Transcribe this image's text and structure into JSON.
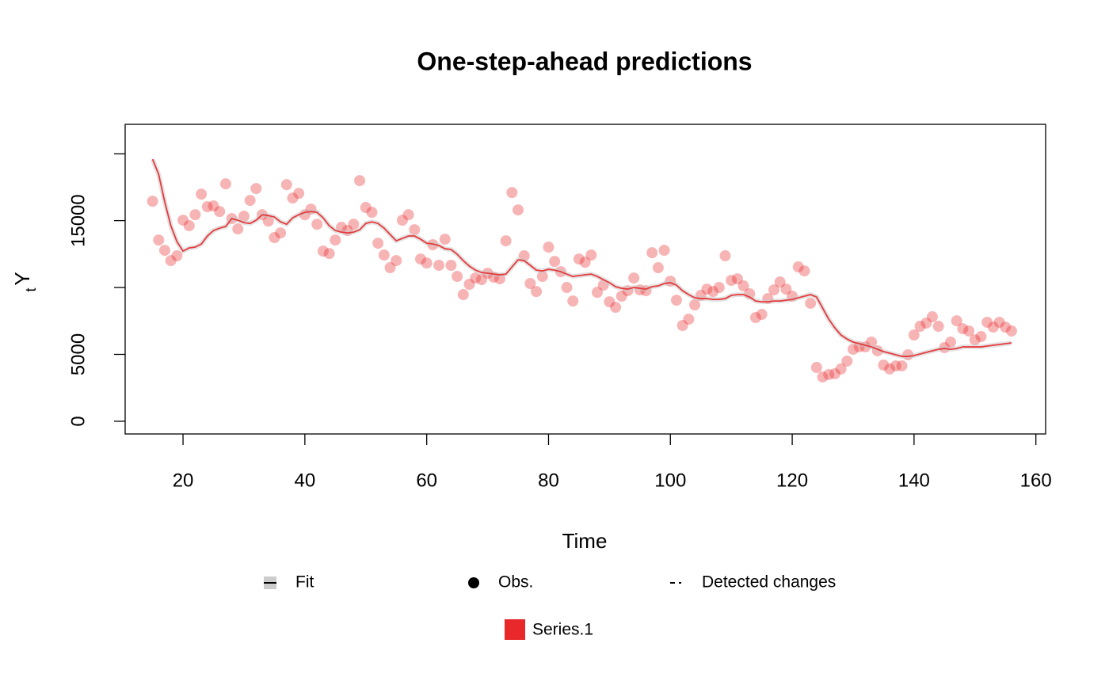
{
  "chart_data": {
    "type": "scatter-line",
    "title": "One-step-ahead predictions",
    "x_label": "Time",
    "y_label": {
      "main": "Y",
      "sub": "t"
    },
    "x": [
      15,
      16,
      17,
      18,
      19,
      20,
      21,
      22,
      23,
      24,
      25,
      26,
      27,
      28,
      29,
      30,
      31,
      32,
      33,
      34,
      35,
      36,
      37,
      38,
      39,
      40,
      41,
      42,
      43,
      44,
      45,
      46,
      47,
      48,
      49,
      50,
      51,
      52,
      53,
      54,
      55,
      56,
      57,
      58,
      59,
      60,
      61,
      62,
      63,
      64,
      65,
      66,
      67,
      68,
      69,
      70,
      71,
      72,
      73,
      74,
      75,
      76,
      77,
      78,
      79,
      80,
      81,
      82,
      83,
      84,
      85,
      86,
      87,
      88,
      89,
      90,
      91,
      92,
      93,
      94,
      95,
      96,
      97,
      98,
      99,
      100,
      101,
      102,
      103,
      104,
      105,
      106,
      107,
      108,
      109,
      110,
      111,
      112,
      113,
      114,
      115,
      116,
      117,
      118,
      119,
      120,
      121,
      122,
      123,
      124,
      125,
      126,
      127,
      128,
      129,
      130,
      131,
      132,
      133,
      134,
      135,
      136,
      137,
      138,
      139,
      140,
      141,
      142,
      143,
      144,
      145,
      146,
      147,
      148,
      149,
      150,
      151,
      152,
      153,
      154,
      155,
      156
    ],
    "series": [
      {
        "name": "Obs.",
        "color": "rgba(232,40,43,0.35)",
        "style": "points",
        "values": [
          16450,
          13550,
          12780,
          12010,
          12370,
          15030,
          14620,
          15440,
          16980,
          16040,
          16100,
          15680,
          17750,
          15150,
          14380,
          15330,
          16510,
          17400,
          15440,
          14970,
          13730,
          14080,
          17690,
          16690,
          17040,
          15440,
          15860,
          14730,
          12720,
          12540,
          13550,
          14500,
          14260,
          14730,
          17990,
          15980,
          15620,
          13310,
          12430,
          11480,
          12010,
          15030,
          15440,
          14320,
          12130,
          11830,
          13200,
          11660,
          13610,
          11660,
          10830,
          9470,
          10240,
          10710,
          10590,
          11070,
          10770,
          10650,
          13490,
          17100,
          15800,
          12370,
          10300,
          9700,
          10830,
          13020,
          11950,
          11180,
          10000,
          8990,
          12130,
          11890,
          12430,
          9640,
          10180,
          8930,
          8520,
          9350,
          9760,
          10710,
          9820,
          9760,
          12600,
          11480,
          12780,
          10470,
          9050,
          7160,
          7630,
          8700,
          9410,
          9880,
          9700,
          10000,
          12370,
          10530,
          10650,
          10120,
          9530,
          7750,
          7990,
          9170,
          9820,
          10410,
          9880,
          9350,
          11540,
          11240,
          8820,
          4020,
          3310,
          3490,
          3550,
          3910,
          4500,
          5380,
          5560,
          5560,
          5920,
          5270,
          4200,
          3910,
          4140,
          4140,
          4970,
          6450,
          7100,
          7340,
          7810,
          7100,
          5500,
          5920,
          7510,
          6920,
          6750,
          6090,
          6330,
          7400,
          7040,
          7400,
          7040,
          6750
        ]
      },
      {
        "name": "Fit",
        "color": "#e8393b",
        "style": "line",
        "values": [
          19590,
          18460,
          16390,
          14620,
          13430,
          12720,
          12960,
          13020,
          13250,
          13850,
          14260,
          14440,
          14560,
          15150,
          15030,
          14850,
          14790,
          15030,
          15440,
          15380,
          15270,
          14910,
          14730,
          15210,
          15440,
          15620,
          15680,
          15620,
          15210,
          14620,
          14260,
          14140,
          14080,
          14140,
          14320,
          14790,
          14910,
          14790,
          14440,
          13960,
          13490,
          13670,
          13850,
          13850,
          13610,
          13310,
          13250,
          13140,
          12900,
          12840,
          12490,
          12010,
          11600,
          11300,
          11120,
          11070,
          11000,
          10950,
          11000,
          11540,
          12070,
          12010,
          11660,
          11300,
          11240,
          11360,
          11300,
          11180,
          11000,
          10830,
          10890,
          10950,
          11000,
          10830,
          10590,
          10360,
          10060,
          9940,
          9880,
          10000,
          9940,
          9880,
          10060,
          10120,
          10300,
          10360,
          10180,
          9760,
          9470,
          9230,
          9170,
          9170,
          9110,
          9110,
          9170,
          9410,
          9470,
          9470,
          9290,
          8990,
          8930,
          8930,
          8990,
          8990,
          9050,
          9110,
          9230,
          9350,
          9470,
          9290,
          8460,
          7630,
          6980,
          6450,
          6150,
          5920,
          5800,
          5680,
          5560,
          5380,
          5210,
          5090,
          4970,
          4850,
          4850,
          4910,
          5030,
          5150,
          5270,
          5380,
          5440,
          5380,
          5440,
          5560,
          5560,
          5560,
          5560,
          5620,
          5680,
          5740,
          5800,
          5860
        ]
      }
    ],
    "changes_legend": "Detected changes",
    "group": {
      "name": "Series.1",
      "color": "#e8282b"
    },
    "xlim": [
      10.5,
      161.6
    ],
    "ylim": [
      -950,
      22200
    ],
    "xticks": [
      20,
      40,
      60,
      80,
      100,
      120,
      140,
      160
    ],
    "yticks": [
      0,
      5000,
      {
        "value": 10000,
        "label": null
      },
      15000,
      {
        "value": 20000,
        "label": null
      }
    ]
  }
}
